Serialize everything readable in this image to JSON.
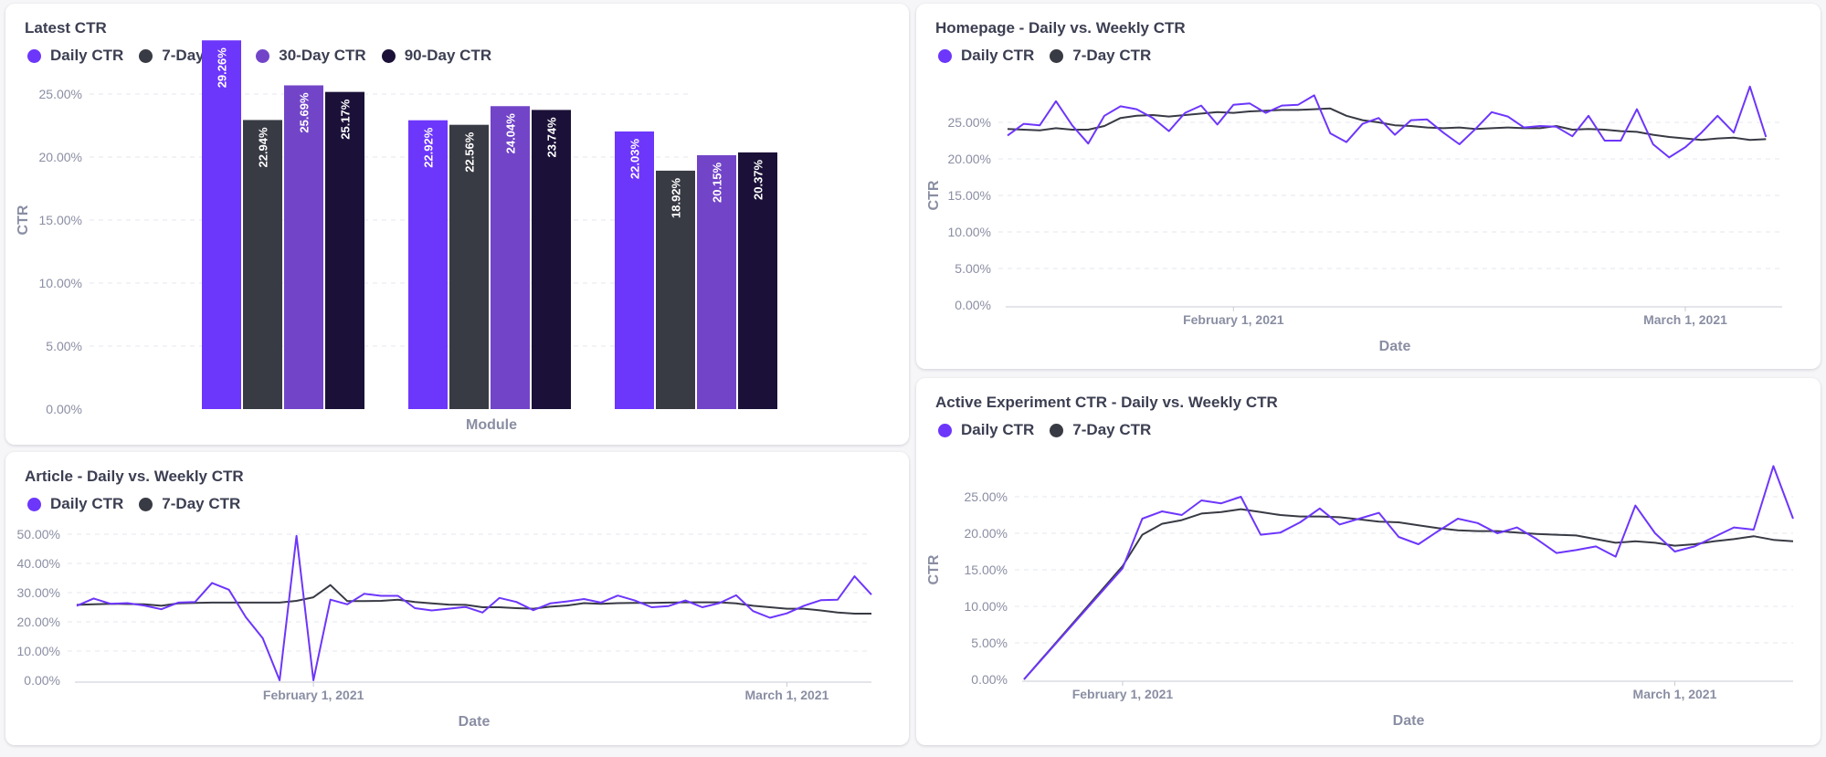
{
  "colors": {
    "daily": "#6d36fb",
    "seven_day": "#383a44",
    "thirty_day": "#7245c8",
    "ninety_day": "#1b1138"
  },
  "panels": {
    "latest": {
      "title": "Latest CTR",
      "legend": [
        "Daily CTR",
        "7-Day CTR",
        "30-Day CTR",
        "90-Day CTR"
      ]
    },
    "homepage": {
      "title": "Homepage - Daily vs. Weekly CTR",
      "legend": [
        "Daily CTR",
        "7-Day CTR"
      ]
    },
    "article": {
      "title": "Article - Daily vs. Weekly CTR",
      "legend": [
        "Daily CTR",
        "7-Day CTR"
      ]
    },
    "experiment": {
      "title": "Active Experiment CTR - Daily vs. Weekly CTR",
      "legend": [
        "Daily CTR",
        "7-Day CTR"
      ]
    }
  },
  "chart_data": [
    {
      "id": "latest",
      "type": "bar",
      "title": "Latest CTR",
      "xlabel": "Module",
      "ylabel": "CTR",
      "ylim": [
        0,
        30
      ],
      "yticks": [
        "0.00%",
        "5.00%",
        "10.00%",
        "15.00%",
        "20.00%",
        "25.00%"
      ],
      "categories": [
        "",
        "",
        ""
      ],
      "series": [
        {
          "name": "Daily CTR",
          "values": [
            29.26,
            22.92,
            22.03
          ],
          "labels": [
            "29.26%",
            "22.92%",
            "22.03%"
          ]
        },
        {
          "name": "7-Day CTR",
          "values": [
            22.94,
            22.56,
            18.92
          ],
          "labels": [
            "22.94%",
            "22.56%",
            "18.92%"
          ]
        },
        {
          "name": "30-Day CTR",
          "values": [
            25.69,
            24.04,
            20.15
          ],
          "labels": [
            "25.69%",
            "24.04%",
            "20.15%"
          ]
        },
        {
          "name": "90-Day CTR",
          "values": [
            25.17,
            23.74,
            20.37
          ],
          "labels": [
            "25.17%",
            "23.74%",
            "20.37%"
          ]
        }
      ],
      "grid": true
    },
    {
      "id": "homepage",
      "type": "line",
      "title": "Homepage - Daily vs. Weekly CTR",
      "xlabel": "Date",
      "ylabel": "CTR",
      "ylim": [
        0,
        30
      ],
      "yticks": [
        "0.00%",
        "5.00%",
        "10.00%",
        "15.00%",
        "20.00%",
        "25.00%"
      ],
      "xticks": [
        {
          "label": "February 1, 2021",
          "day": 19
        },
        {
          "label": "March 1, 2021",
          "day": 47
        }
      ],
      "x_range": [
        5,
        53
      ],
      "series": [
        {
          "name": "Daily CTR",
          "x": [
            5,
            6,
            7,
            8,
            9,
            10,
            11,
            12,
            13,
            14,
            15,
            16,
            17,
            18,
            19,
            20,
            21,
            22,
            23,
            24,
            25,
            26,
            27,
            28,
            29,
            30,
            31,
            32,
            33,
            34,
            35,
            36,
            37,
            38,
            39,
            40,
            41,
            42,
            43,
            44,
            45,
            46,
            47,
            48,
            49,
            50,
            51,
            52,
            53
          ],
          "values": [
            23.2,
            24.8,
            24.6,
            27.9,
            24.6,
            22.1,
            25.9,
            27.2,
            26.8,
            25.6,
            23.8,
            26.3,
            27.3,
            24.7,
            27.4,
            27.6,
            26.3,
            27.3,
            27.4,
            28.7,
            23.5,
            22.3,
            24.8,
            25.6,
            23.3,
            25.3,
            25.4,
            23.6,
            22.0,
            24.1,
            26.4,
            25.8,
            24.3,
            24.5,
            24.4,
            23.1,
            25.9,
            22.5,
            22.5,
            26.8,
            22.0,
            20.2,
            21.6,
            23.6,
            25.9,
            23.6,
            29.9,
            23.0,
            null
          ]
        },
        {
          "name": "7-Day CTR",
          "x": [
            5,
            6,
            7,
            8,
            9,
            10,
            11,
            12,
            13,
            14,
            15,
            16,
            17,
            18,
            19,
            20,
            21,
            22,
            23,
            24,
            25,
            26,
            27,
            28,
            29,
            30,
            31,
            32,
            33,
            34,
            35,
            36,
            37,
            38,
            39,
            40,
            41,
            42,
            43,
            44,
            45,
            46,
            47,
            48,
            49,
            50,
            51,
            52,
            53
          ],
          "values": [
            24.1,
            24.0,
            23.9,
            24.2,
            24.0,
            24.0,
            24.5,
            25.6,
            25.9,
            26.0,
            25.8,
            26.0,
            26.2,
            26.4,
            26.3,
            26.5,
            26.6,
            26.7,
            26.7,
            26.8,
            26.9,
            25.9,
            25.3,
            25.0,
            24.6,
            24.5,
            24.3,
            24.2,
            24.3,
            24.1,
            24.2,
            24.3,
            24.2,
            24.2,
            24.5,
            24.0,
            24.1,
            24.0,
            23.8,
            23.7,
            23.3,
            23.0,
            22.8,
            22.6,
            22.8,
            22.9,
            22.6,
            22.7,
            null
          ]
        }
      ],
      "grid": true
    },
    {
      "id": "article",
      "type": "line",
      "title": "Article - Daily vs. Weekly CTR",
      "xlabel": "Date",
      "ylabel": "",
      "ylim": [
        0,
        50
      ],
      "yticks": [
        "0.00%",
        "10.00%",
        "20.00%",
        "30.00%",
        "40.00%",
        "50.00%"
      ],
      "xticks": [
        {
          "label": "February 1, 2021",
          "day": 19
        },
        {
          "label": "March 1, 2021",
          "day": 47
        }
      ],
      "x_range": [
        5,
        53
      ],
      "series": [
        {
          "name": "Daily CTR",
          "x": [
            5,
            6,
            7,
            8,
            9,
            10,
            11,
            12,
            13,
            14,
            15,
            16,
            17,
            18,
            19,
            20,
            21,
            22,
            23,
            24,
            25,
            26,
            27,
            28,
            29,
            30,
            31,
            32,
            33,
            34,
            35,
            36,
            37,
            38,
            39,
            40,
            41,
            42,
            43,
            44,
            45,
            46,
            47,
            48,
            49,
            50,
            51,
            52
          ],
          "values": [
            25.5,
            28.0,
            26.2,
            26.4,
            25.6,
            24.3,
            26.6,
            26.8,
            33.3,
            31.0,
            21.6,
            14.4,
            0,
            49.4,
            0,
            27.6,
            26.0,
            29.6,
            28.9,
            28.9,
            24.7,
            23.9,
            24.5,
            25.1,
            23.2,
            28.2,
            26.8,
            24.0,
            26.3,
            27.0,
            27.8,
            26.6,
            29.0,
            27.3,
            25.0,
            25.4,
            27.3,
            25.0,
            26.4,
            29.1,
            23.7,
            21.4,
            22.9,
            25.5,
            27.4,
            27.6,
            35.6,
            29.3
          ]
        },
        {
          "name": "7-Day CTR",
          "x": [
            5,
            6,
            7,
            8,
            9,
            10,
            11,
            12,
            13,
            14,
            15,
            16,
            17,
            18,
            19,
            20,
            21,
            22,
            23,
            24,
            25,
            26,
            27,
            28,
            29,
            30,
            31,
            32,
            33,
            34,
            35,
            36,
            37,
            38,
            39,
            40,
            41,
            42,
            43,
            44,
            45,
            46,
            47,
            48,
            49,
            50,
            51,
            52
          ],
          "values": [
            25.8,
            26.0,
            26.2,
            26.1,
            26.0,
            25.5,
            26.3,
            26.5,
            26.6,
            26.6,
            26.6,
            26.6,
            26.6,
            27.2,
            28.4,
            32.6,
            27.1,
            27.1,
            27.2,
            27.6,
            26.8,
            26.3,
            25.9,
            25.8,
            25.0,
            25.0,
            24.7,
            24.5,
            25.2,
            25.6,
            26.4,
            26.2,
            26.4,
            26.5,
            26.5,
            26.6,
            26.7,
            26.7,
            26.7,
            26.3,
            25.5,
            25.0,
            24.5,
            24.5,
            23.9,
            23.2,
            22.8,
            22.8
          ]
        }
      ],
      "grid": true
    },
    {
      "id": "experiment",
      "type": "line",
      "title": "Active Experiment CTR - Daily vs. Weekly CTR",
      "xlabel": "Date",
      "ylabel": "CTR",
      "ylim": [
        0,
        30
      ],
      "yticks": [
        "0.00%",
        "5.00%",
        "10.00%",
        "15.00%",
        "20.00%",
        "25.00%"
      ],
      "xticks": [
        {
          "label": "February 1, 2021",
          "day": 19
        },
        {
          "label": "March 1, 2021",
          "day": 47
        }
      ],
      "x_range": [
        14,
        53
      ],
      "series": [
        {
          "name": "Daily CTR",
          "x": [
            14,
            19,
            20,
            21,
            22,
            23,
            24,
            25,
            26,
            27,
            28,
            29,
            30,
            31,
            32,
            33,
            34,
            35,
            36,
            37,
            38,
            39,
            40,
            41,
            42,
            43,
            44,
            45,
            46,
            47,
            48,
            49,
            50,
            51,
            52,
            53
          ],
          "values": [
            0,
            15.2,
            22.0,
            23.0,
            22.5,
            24.5,
            24.1,
            25.0,
            19.8,
            20.1,
            21.5,
            23.4,
            21.2,
            22.0,
            22.8,
            19.5,
            18.5,
            20.3,
            22.0,
            21.4,
            20.0,
            20.8,
            19.2,
            17.3,
            17.7,
            18.2,
            16.8,
            23.8,
            20.0,
            17.5,
            18.2,
            19.5,
            20.8,
            20.5,
            29.2,
            22.0
          ]
        },
        {
          "name": "7-Day CTR",
          "x": [
            14,
            19,
            20,
            21,
            22,
            23,
            24,
            25,
            26,
            27,
            28,
            29,
            30,
            31,
            32,
            33,
            34,
            35,
            36,
            37,
            38,
            39,
            40,
            41,
            42,
            43,
            44,
            45,
            46,
            47,
            48,
            49,
            50,
            51,
            52,
            53
          ],
          "values": [
            0,
            15.5,
            19.8,
            21.3,
            21.8,
            22.7,
            22.9,
            23.3,
            22.9,
            22.5,
            22.3,
            22.3,
            22.2,
            21.9,
            21.6,
            21.5,
            21.1,
            20.7,
            20.4,
            20.3,
            20.3,
            20.1,
            19.9,
            19.8,
            19.7,
            19.2,
            18.7,
            18.9,
            18.7,
            18.3,
            18.5,
            18.9,
            19.2,
            19.6,
            19.1,
            18.9
          ]
        }
      ],
      "grid": true
    }
  ]
}
